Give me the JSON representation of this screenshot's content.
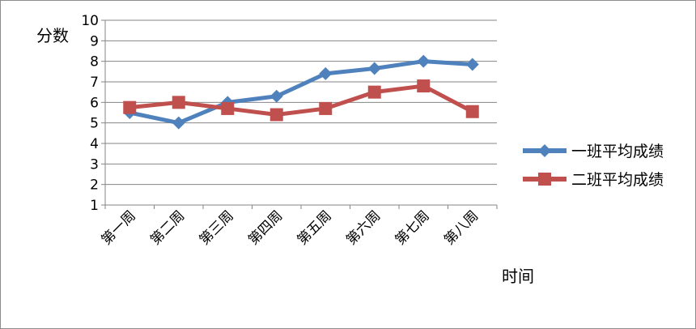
{
  "chart_data": {
    "type": "line",
    "categories": [
      "第一周",
      "第二周",
      "第三周",
      "第四周",
      "第五周",
      "第六周",
      "第七周",
      "第八周"
    ],
    "series": [
      {
        "name": "一班平均成绩",
        "color": "#4f81bd",
        "marker": "diamond",
        "values": [
          5.5,
          5.0,
          6.0,
          6.3,
          7.4,
          7.65,
          8.0,
          7.85
        ]
      },
      {
        "name": "二班平均成绩",
        "color": "#c0504d",
        "marker": "square",
        "values": [
          5.75,
          6.0,
          5.7,
          5.4,
          5.7,
          6.5,
          6.8,
          5.55
        ]
      }
    ],
    "ylim": [
      1,
      10
    ],
    "yticks": [
      "1",
      "2",
      "3",
      "4",
      "5",
      "6",
      "7",
      "8",
      "9",
      "10"
    ],
    "ylabel": "分数",
    "xlabel": "时间",
    "grid": true,
    "legend_position": "right"
  }
}
